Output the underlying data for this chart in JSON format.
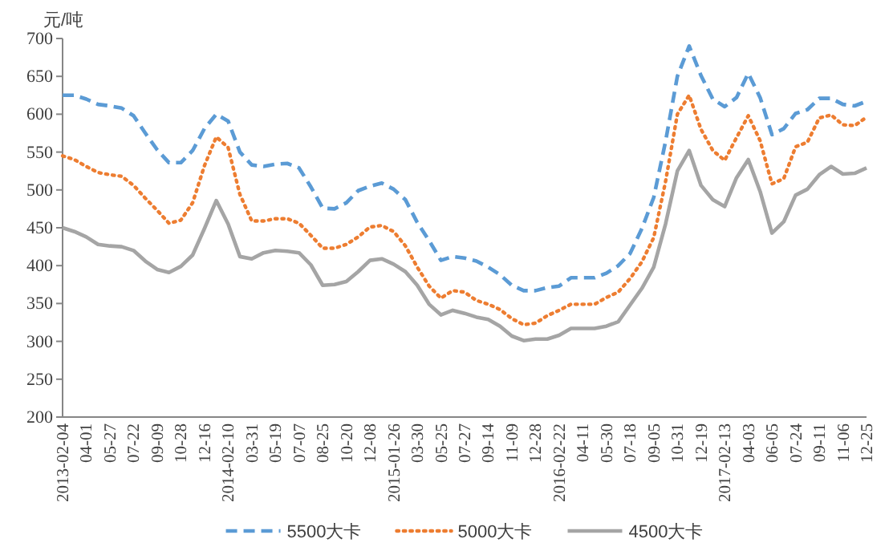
{
  "chart_data": {
    "type": "line",
    "ylabel": "元/吨",
    "categories": [
      "2013-02-04",
      null,
      "04-01",
      null,
      "05-27",
      null,
      "07-22",
      null,
      "09-09",
      null,
      "10-28",
      null,
      "12-16",
      null,
      "2014-02-10",
      null,
      "03-31",
      null,
      "05-19",
      null,
      "07-07",
      null,
      "08-25",
      null,
      "10-20",
      null,
      "12-08",
      null,
      "2015-01-26",
      null,
      "03-30",
      null,
      "05-25",
      null,
      "07-27",
      null,
      "09-14",
      null,
      "11-09",
      null,
      "12-28",
      null,
      "2016-02-22",
      null,
      "04-11",
      null,
      "05-30",
      null,
      "07-18",
      null,
      "09-05",
      null,
      "10-31",
      null,
      "12-19",
      null,
      "2017-02-13",
      null,
      "04-03",
      null,
      "06-05",
      null,
      "07-24",
      null,
      "09-11",
      null,
      "11-06",
      null,
      "12-25"
    ],
    "series": [
      {
        "name": "5500大卡",
        "color": "#5b9bd5",
        "line_style": "dashed",
        "values": [
          625,
          625,
          620,
          613,
          611,
          608,
          598,
          575,
          553,
          536,
          536,
          552,
          581,
          600,
          591,
          550,
          533,
          531,
          534,
          535,
          529,
          504,
          476,
          475,
          483,
          499,
          505,
          509,
          501,
          487,
          457,
          433,
          407,
          412,
          410,
          406,
          398,
          388,
          374,
          367,
          367,
          371,
          373,
          384,
          384,
          384,
          390,
          400,
          416,
          449,
          490,
          564,
          650,
          690,
          651,
          620,
          610,
          622,
          654,
          622,
          573,
          581,
          601,
          606,
          621,
          621,
          613,
          611,
          617
        ]
      },
      {
        "name": "5000大卡",
        "color": "#ed7d31",
        "line_style": "dotted",
        "values": [
          545,
          540,
          531,
          523,
          520,
          518,
          506,
          489,
          473,
          456,
          460,
          483,
          532,
          570,
          556,
          494,
          459,
          459,
          462,
          462,
          456,
          440,
          423,
          423,
          428,
          438,
          451,
          453,
          445,
          426,
          398,
          373,
          357,
          367,
          365,
          354,
          349,
          342,
          330,
          322,
          324,
          334,
          341,
          349,
          349,
          349,
          358,
          365,
          383,
          405,
          437,
          511,
          600,
          625,
          580,
          552,
          539,
          569,
          598,
          565,
          508,
          515,
          557,
          563,
          595,
          599,
          586,
          585,
          596
        ]
      },
      {
        "name": "4500大卡",
        "color": "#a5a5a5",
        "line_style": "solid",
        "values": [
          450,
          445,
          438,
          428,
          426,
          425,
          420,
          406,
          395,
          391,
          399,
          414,
          449,
          486,
          455,
          412,
          409,
          417,
          420,
          419,
          417,
          401,
          374,
          375,
          379,
          392,
          407,
          409,
          402,
          392,
          374,
          349,
          335,
          341,
          337,
          332,
          329,
          320,
          307,
          301,
          303,
          303,
          308,
          317,
          317,
          317,
          320,
          326,
          348,
          370,
          398,
          455,
          525,
          552,
          506,
          487,
          478,
          516,
          540,
          498,
          443,
          458,
          493,
          501,
          520,
          531,
          521,
          522,
          529
        ]
      }
    ],
    "ylim": [
      200,
      700
    ],
    "yticks": [
      200,
      250,
      300,
      350,
      400,
      450,
      500,
      550,
      600,
      650,
      700
    ],
    "grid": false,
    "legend": "bottom",
    "marker": "none"
  }
}
